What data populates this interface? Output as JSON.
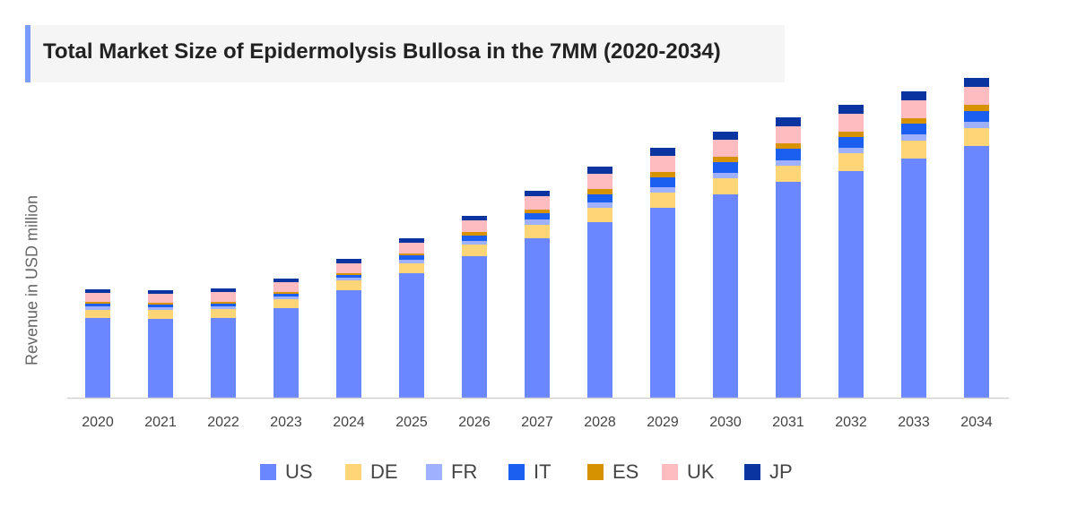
{
  "chart_data": {
    "type": "bar",
    "stacked": true,
    "title": "Total Market Size of Epidermolysis Bullosa in the 7MM (2020-2034)",
    "xlabel": "",
    "ylabel": "Revenue in USD million",
    "y_tick_labels_shown": false,
    "grid": false,
    "legend_position": "bottom",
    "ylim": [
      0,
      364
    ],
    "categories": [
      "2020",
      "2021",
      "2022",
      "2023",
      "2024",
      "2025",
      "2026",
      "2027",
      "2028",
      "2029",
      "2030",
      "2031",
      "2032",
      "2033",
      "2034"
    ],
    "series": [
      {
        "name": "US",
        "color": "#6b87ff",
        "values": [
          89,
          88,
          89,
          100,
          120,
          139,
          158,
          178,
          196,
          212,
          227,
          241,
          253,
          267,
          281
        ]
      },
      {
        "name": "DE",
        "color": "#ffd577",
        "values": [
          9,
          10,
          10,
          10,
          11,
          11,
          13,
          15,
          16,
          17,
          18,
          18,
          20,
          20,
          20
        ]
      },
      {
        "name": "FR",
        "color": "#9fb0ff",
        "values": [
          4,
          3,
          3,
          3,
          3,
          4,
          4,
          6,
          6,
          6,
          6,
          6,
          6,
          7,
          7
        ]
      },
      {
        "name": "IT",
        "color": "#1a5ff0",
        "values": [
          3,
          3,
          3,
          3,
          3,
          5,
          6,
          7,
          9,
          11,
          12,
          13,
          12,
          12,
          12
        ]
      },
      {
        "name": "ES",
        "color": "#d69200",
        "values": [
          2,
          2,
          2,
          2,
          2,
          2,
          4,
          4,
          6,
          6,
          6,
          6,
          6,
          6,
          7
        ]
      },
      {
        "name": "UK",
        "color": "#ffbcc0",
        "values": [
          10,
          10,
          11,
          11,
          11,
          12,
          13,
          15,
          17,
          18,
          19,
          19,
          20,
          20,
          20
        ]
      },
      {
        "name": "JP",
        "color": "#0a35a0",
        "values": [
          4,
          4,
          4,
          4,
          5,
          5,
          5,
          6,
          8,
          9,
          9,
          10,
          10,
          10,
          10
        ]
      }
    ]
  }
}
